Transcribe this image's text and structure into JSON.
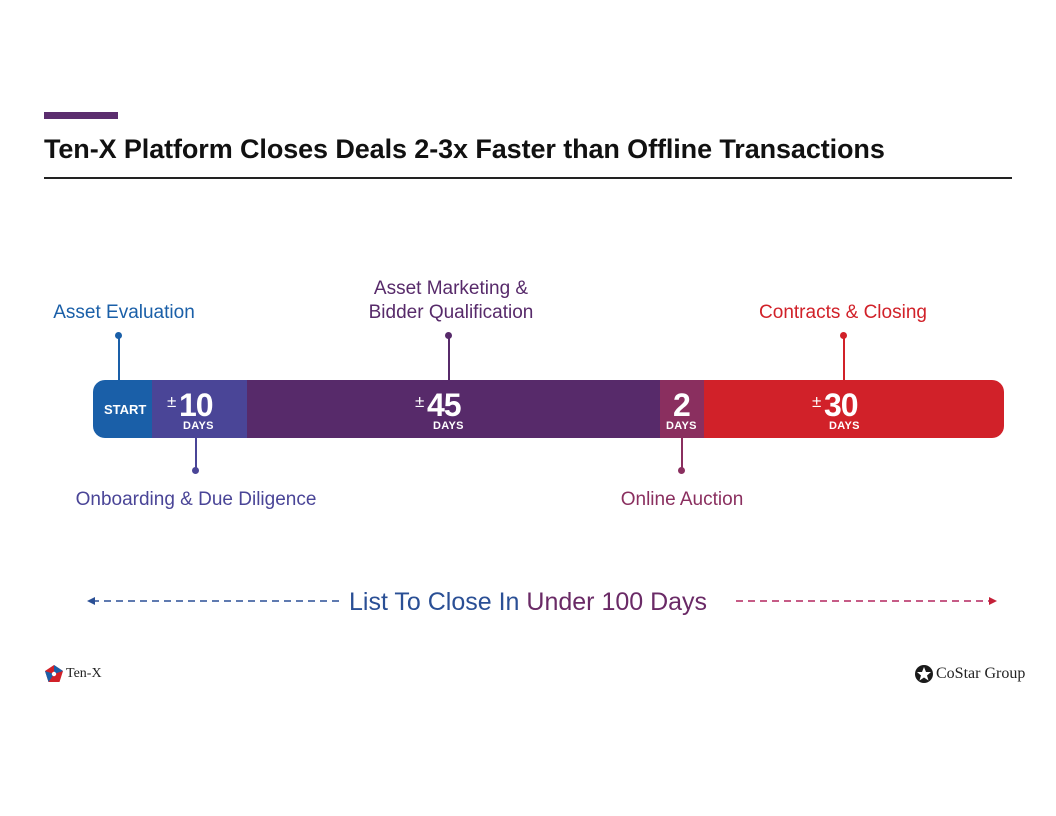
{
  "slide": {
    "title": "Ten-X Platform Closes Deals 2-3x Faster than Offline Transactions"
  },
  "timeline": {
    "labels_above": {
      "asset_evaluation": "Asset Evaluation",
      "asset_marketing_line1": "Asset Marketing &",
      "asset_marketing_line2": "Bidder Qualification",
      "contracts_closing": "Contracts & Closing"
    },
    "labels_below": {
      "onboarding": "Onboarding & Due Diligence",
      "online_auction": "Online Auction"
    },
    "segments": {
      "start": "START",
      "onboarding": {
        "prefix": "±",
        "value": "10",
        "unit": "DAYS"
      },
      "marketing": {
        "prefix": "±",
        "value": "45",
        "unit": "DAYS"
      },
      "auction": {
        "prefix": "",
        "value": "2",
        "unit": "DAYS"
      },
      "closing": {
        "prefix": "±",
        "value": "30",
        "unit": "DAYS"
      }
    },
    "colors": {
      "start": "#1a5fa8",
      "onboarding": "#4a4597",
      "marketing": "#572a6a",
      "auction": "#8a2f5f",
      "closing": "#d12129"
    }
  },
  "footer": {
    "summary_part1": "List To Close In ",
    "summary_part2": "Under 100 Days"
  },
  "logos": {
    "left": "Ten-X",
    "right": "CoStar Group"
  }
}
